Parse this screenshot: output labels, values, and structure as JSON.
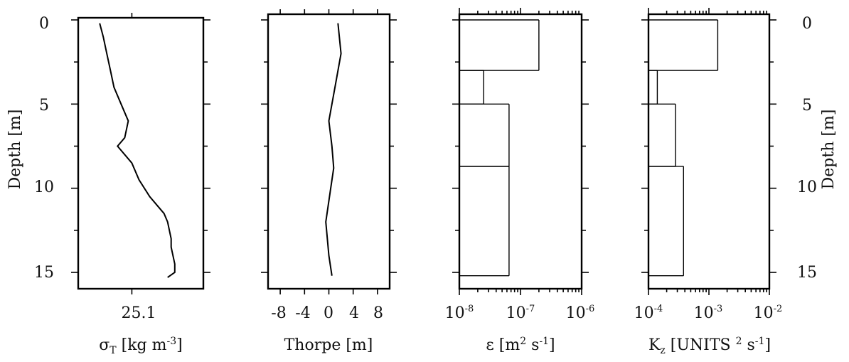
{
  "figure": {
    "y_axis_label_left": "Depth [m]",
    "y_axis_label_right": "Depth [m]",
    "depth_ticks": [
      "0",
      "5",
      "10",
      "15"
    ]
  },
  "chart_data": [
    {
      "type": "line",
      "id": "sigma",
      "xlabel": "σT [kg m-3]",
      "ylabel": "Depth [m]",
      "ylim": [
        0,
        16
      ],
      "xlim": [
        24.95,
        25.3
      ],
      "x_tick_labels": [
        "25.1"
      ],
      "series": [
        {
          "x": [
            25.01,
            25.02,
            25.03,
            25.04,
            25.05,
            25.07,
            25.09,
            25.08,
            25.06,
            25.1,
            25.12,
            25.15,
            25.17,
            25.19,
            25.2,
            25.21,
            25.21,
            25.22,
            25.22,
            25.2
          ],
          "y": [
            0.2,
            1.0,
            2.0,
            3.0,
            4.0,
            5.0,
            6.0,
            7.0,
            7.5,
            8.5,
            9.5,
            10.5,
            11.0,
            11.5,
            12.0,
            13.0,
            13.5,
            14.5,
            15.0,
            15.3
          ]
        }
      ]
    },
    {
      "type": "line",
      "id": "thorpe",
      "xlabel": "Thorpe [m]",
      "ylim": [
        0,
        16
      ],
      "xlim": [
        -10,
        10
      ],
      "x_tick_labels": [
        "-8",
        "-4",
        "0",
        "4",
        "8"
      ],
      "series": [
        {
          "x": [
            1.5,
            2.0,
            1.0,
            0.0,
            0.5,
            0.8,
            0.3,
            -0.5,
            0.0,
            0.5
          ],
          "y": [
            0.2,
            2.0,
            4.0,
            6.0,
            7.5,
            8.8,
            10.0,
            12.0,
            14.0,
            15.2
          ]
        }
      ]
    },
    {
      "type": "line",
      "id": "epsilon",
      "xlabel": "ε [m2 s-1]",
      "x_scale": "log",
      "xlim": [
        1e-08,
        1e-06
      ],
      "ylim": [
        0,
        16
      ],
      "x_tick_labels": [
        "10-8",
        "10-7",
        "10-6"
      ],
      "series": [
        {
          "segments": [
            {
              "x": 2e-07,
              "y_top": 0.0,
              "y_bottom": 3.0
            },
            {
              "x": 2.5e-08,
              "y_top": 3.0,
              "y_bottom": 5.0
            },
            {
              "x": 6.5e-08,
              "y_top": 5.0,
              "y_bottom": 8.7
            },
            {
              "x": 6.5e-08,
              "y_top": 8.7,
              "y_bottom": 15.2
            }
          ]
        }
      ]
    },
    {
      "type": "line",
      "id": "kz",
      "xlabel": "Kz [UNITS 2 s-1]",
      "x_scale": "log",
      "xlim": [
        0.0001,
        0.01
      ],
      "ylim": [
        0,
        16
      ],
      "x_tick_labels": [
        "10-4",
        "10-3",
        "10-2"
      ],
      "series": [
        {
          "segments": [
            {
              "x": 0.0014,
              "y_top": 0.0,
              "y_bottom": 3.0
            },
            {
              "x": 0.00014,
              "y_top": 3.0,
              "y_bottom": 5.0
            },
            {
              "x": 0.00028,
              "y_top": 5.0,
              "y_bottom": 8.7
            },
            {
              "x": 0.00038,
              "y_top": 8.7,
              "y_bottom": 15.2
            }
          ]
        }
      ]
    }
  ]
}
